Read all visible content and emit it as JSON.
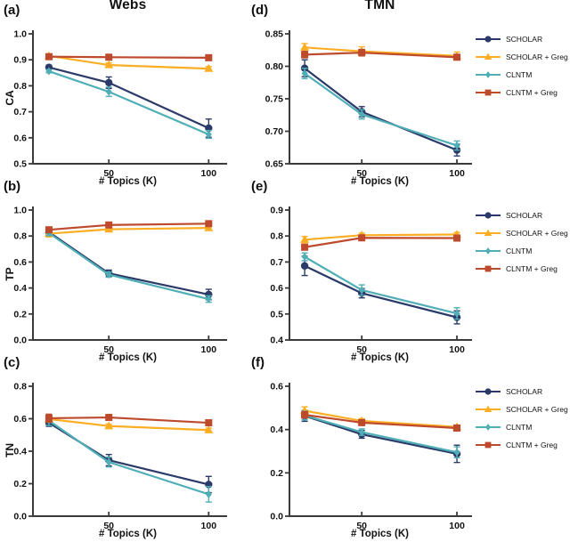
{
  "figure": {
    "legend": [
      {
        "label": "SCHOLAR",
        "color": "#2B3A68",
        "marker": "circle"
      },
      {
        "label": "SCHOLAR + Greg",
        "color": "#FBAE24",
        "marker": "triangle"
      },
      {
        "label": "CLNTM",
        "color": "#4FAEB6",
        "marker": "diamond"
      },
      {
        "label": "CLNTM + Greg",
        "color": "#BE4A2D",
        "marker": "square"
      }
    ],
    "axis_color": "#3a3a3a",
    "text_color": "#111111"
  },
  "chart_data": [
    {
      "type": "line",
      "panel": "(a)",
      "title": "Webs",
      "ylabel": "CA",
      "xlabel": "# Topics (K)",
      "x": [
        20,
        50,
        100
      ],
      "xlim": [
        12,
        107
      ],
      "xticks": [
        "50",
        "100"
      ],
      "ylim": [
        0.5,
        1.0
      ],
      "yticks": [
        "0.5",
        "0.6",
        "0.7",
        "0.8",
        "0.9",
        "1.0"
      ],
      "series": [
        {
          "name": "SCHOLAR",
          "values": [
            0.871,
            0.812,
            0.637
          ],
          "errors": [
            0.008,
            0.022,
            0.035
          ]
        },
        {
          "name": "SCHOLAR + Greg",
          "values": [
            0.915,
            0.88,
            0.866
          ],
          "errors": [
            0.007,
            0.008,
            0.008
          ]
        },
        {
          "name": "CLNTM",
          "values": [
            0.856,
            0.777,
            0.613
          ],
          "errors": [
            0.006,
            0.018,
            0.015
          ]
        },
        {
          "name": "CLNTM + Greg",
          "values": [
            0.912,
            0.91,
            0.908
          ],
          "errors": [
            0.005,
            0.006,
            0.005
          ]
        }
      ]
    },
    {
      "type": "line",
      "panel": "(b)",
      "ylabel": "TP",
      "xlabel": "# Topics (K)",
      "x": [
        20,
        50,
        100
      ],
      "xlim": [
        12,
        107
      ],
      "xticks": [
        "50",
        "100"
      ],
      "ylim": [
        0.0,
        1.0
      ],
      "yticks": [
        "0.0",
        "0.2",
        "0.4",
        "0.6",
        "0.8",
        "1.0"
      ],
      "series": [
        {
          "name": "SCHOLAR",
          "values": [
            0.83,
            0.513,
            0.35
          ],
          "errors": [
            0.02,
            0.025,
            0.04
          ]
        },
        {
          "name": "SCHOLAR + Greg",
          "values": [
            0.818,
            0.852,
            0.862
          ],
          "errors": [
            0.025,
            0.012,
            0.012
          ]
        },
        {
          "name": "CLNTM",
          "values": [
            0.823,
            0.503,
            0.315
          ],
          "errors": [
            0.02,
            0.02,
            0.025
          ]
        },
        {
          "name": "CLNTM + Greg",
          "values": [
            0.848,
            0.885,
            0.895
          ],
          "errors": [
            0.015,
            0.008,
            0.008
          ]
        }
      ]
    },
    {
      "type": "line",
      "panel": "(c)",
      "ylabel": "TN",
      "xlabel": "# Topics (K)",
      "x": [
        20,
        50,
        100
      ],
      "xlim": [
        12,
        107
      ],
      "xticks": [
        "50",
        "100"
      ],
      "ylim": [
        0.0,
        0.8
      ],
      "yticks": [
        "0.0",
        "0.2",
        "0.4",
        "0.6",
        "0.8"
      ],
      "series": [
        {
          "name": "SCHOLAR",
          "values": [
            0.575,
            0.345,
            0.195
          ],
          "errors": [
            0.022,
            0.035,
            0.05
          ]
        },
        {
          "name": "SCHOLAR + Greg",
          "values": [
            0.598,
            0.555,
            0.53
          ],
          "errors": [
            0.02,
            0.012,
            0.012
          ]
        },
        {
          "name": "CLNTM",
          "values": [
            0.588,
            0.333,
            0.135
          ],
          "errors": [
            0.03,
            0.03,
            0.048
          ]
        },
        {
          "name": "CLNTM + Greg",
          "values": [
            0.603,
            0.608,
            0.575
          ],
          "errors": [
            0.025,
            0.012,
            0.01
          ]
        }
      ]
    },
    {
      "type": "line",
      "panel": "(d)",
      "title": "TMN",
      "xlabel": "# Topics (K)",
      "x": [
        20,
        50,
        100
      ],
      "xlim": [
        12,
        107
      ],
      "xticks": [
        "50",
        "100"
      ],
      "ylim": [
        0.65,
        0.85
      ],
      "yticks": [
        "0.65",
        "0.70",
        "0.75",
        "0.80",
        "0.85"
      ],
      "series": [
        {
          "name": "SCHOLAR",
          "values": [
            0.797,
            0.73,
            0.671
          ],
          "errors": [
            0.013,
            0.008,
            0.009
          ]
        },
        {
          "name": "SCHOLAR + Greg",
          "values": [
            0.829,
            0.823,
            0.816
          ],
          "errors": [
            0.006,
            0.007,
            0.006
          ]
        },
        {
          "name": "CLNTM",
          "values": [
            0.789,
            0.726,
            0.678
          ],
          "errors": [
            0.008,
            0.007,
            0.007
          ]
        },
        {
          "name": "CLNTM + Greg",
          "values": [
            0.818,
            0.821,
            0.814
          ],
          "errors": [
            0.005,
            0.005,
            0.004
          ]
        }
      ]
    },
    {
      "type": "line",
      "panel": "(e)",
      "xlabel": "# Topics (K)",
      "x": [
        20,
        50,
        100
      ],
      "xlim": [
        12,
        107
      ],
      "xticks": [
        "50",
        "100"
      ],
      "ylim": [
        0.4,
        0.9
      ],
      "yticks": [
        "0.4",
        "0.5",
        "0.6",
        "0.7",
        "0.8",
        "0.9"
      ],
      "series": [
        {
          "name": "SCHOLAR",
          "values": [
            0.685,
            0.58,
            0.487
          ],
          "errors": [
            0.037,
            0.018,
            0.025
          ]
        },
        {
          "name": "SCHOLAR + Greg",
          "values": [
            0.786,
            0.803,
            0.806
          ],
          "errors": [
            0.012,
            0.008,
            0.008
          ]
        },
        {
          "name": "CLNTM",
          "values": [
            0.72,
            0.592,
            0.502
          ],
          "errors": [
            0.015,
            0.02,
            0.022
          ]
        },
        {
          "name": "CLNTM + Greg",
          "values": [
            0.757,
            0.793,
            0.792
          ],
          "errors": [
            0.01,
            0.006,
            0.006
          ]
        }
      ]
    },
    {
      "type": "line",
      "panel": "(f)",
      "xlabel": "# Topics (K)",
      "x": [
        20,
        50,
        100
      ],
      "xlim": [
        12,
        107
      ],
      "xticks": [
        "50",
        "100"
      ],
      "ylim": [
        0.0,
        0.6
      ],
      "yticks": [
        "0.0",
        "0.2",
        "0.4",
        "0.6"
      ],
      "series": [
        {
          "name": "SCHOLAR",
          "values": [
            0.463,
            0.378,
            0.288
          ],
          "errors": [
            0.025,
            0.018,
            0.04
          ]
        },
        {
          "name": "SCHOLAR + Greg",
          "values": [
            0.487,
            0.44,
            0.412
          ],
          "errors": [
            0.018,
            0.01,
            0.008
          ]
        },
        {
          "name": "CLNTM",
          "values": [
            0.465,
            0.388,
            0.295
          ],
          "errors": [
            0.02,
            0.015,
            0.025
          ]
        },
        {
          "name": "CLNTM + Greg",
          "values": [
            0.468,
            0.432,
            0.407
          ],
          "errors": [
            0.015,
            0.008,
            0.006
          ]
        }
      ]
    }
  ]
}
